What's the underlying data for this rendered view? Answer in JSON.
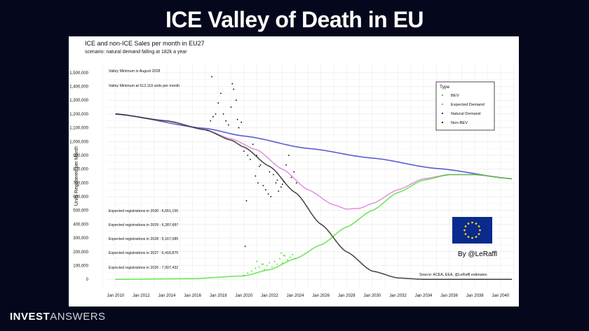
{
  "header": {
    "title": "ICE Valley of Death in EU"
  },
  "brand": {
    "part1": "INVEST",
    "part2": "ANSWERS"
  },
  "chart_data": {
    "type": "scatter",
    "title": "ICE and non-ICE Sales per month in EU27",
    "subtitle": "scenario: natural demand falling at 182k a year",
    "xlabel": "",
    "ylabel": "Units Registered per Month",
    "x_ticks": [
      "Jan 2010",
      "Jan 2012",
      "Jan 2014",
      "Jan 2016",
      "Jan 2018",
      "Jan 2020",
      "Jan 2022",
      "Jan 2024",
      "Jan 2026",
      "Jan 2028",
      "Jan 2030",
      "Jan 2032",
      "Jan 2034",
      "Jan 2036",
      "Jan 2038",
      "Jan 2040"
    ],
    "xlim": [
      2009.3,
      2041.1
    ],
    "ylim": [
      -60000,
      1560000
    ],
    "y_ticks": [
      "0",
      "100,000",
      "200,000",
      "300,000",
      "400,000",
      "500,000",
      "600,000",
      "700,000",
      "800,000",
      "900,000",
      "1,000,000",
      "1,100,000",
      "1,200,000",
      "1,300,000",
      "1,400,000",
      "1,500,000"
    ],
    "grid": true,
    "legend": {
      "title": "Type",
      "position": "top-right",
      "entries": [
        {
          "name": "BEV",
          "color": "#32dd14"
        },
        {
          "name": "Expected Demand",
          "color": "#d56bd3"
        },
        {
          "name": "Natural Demand",
          "color": "#1515c4"
        },
        {
          "name": "Non-BEV",
          "color": "#000000"
        }
      ]
    },
    "series": [
      {
        "name": "Natural Demand",
        "color": "#1515c4",
        "x": [
          2010,
          2017,
          2020,
          2025,
          2030,
          2035,
          2040.9
        ],
        "y": [
          1200000,
          1095000,
          1040000,
          950000,
          880000,
          805000,
          730000
        ]
      },
      {
        "name": "Expected Demand",
        "color": "#d56bd3",
        "x": [
          2010,
          2014,
          2017,
          2019,
          2021,
          2023,
          2025,
          2027,
          2028,
          2029,
          2030,
          2032,
          2034,
          2036,
          2038,
          2040.9
        ],
        "y": [
          1200000,
          1150000,
          1085000,
          1020000,
          940000,
          800000,
          650000,
          540000,
          510000,
          515000,
          550000,
          650000,
          730000,
          760000,
          760000,
          730000
        ]
      },
      {
        "name": "Non-BEV",
        "color": "#000000",
        "x": [
          2010,
          2014,
          2017,
          2019,
          2020,
          2022,
          2024,
          2026,
          2028,
          2030,
          2032,
          2034,
          2036,
          2040.9
        ],
        "y": [
          1200000,
          1150000,
          1085000,
          1010000,
          960000,
          820000,
          630000,
          400000,
          200000,
          60000,
          10000,
          0,
          0,
          0
        ]
      },
      {
        "name": "BEV",
        "color": "#32dd14",
        "x": [
          2010,
          2016,
          2020,
          2022,
          2024,
          2026,
          2028,
          2030,
          2032,
          2034,
          2036,
          2038,
          2040.9
        ],
        "y": [
          0,
          5000,
          25000,
          70000,
          150000,
          250000,
          380000,
          500000,
          630000,
          720000,
          760000,
          760000,
          730000
        ]
      }
    ],
    "observed_non_bev": {
      "x": [
        2017.2,
        2017.4,
        2017.6,
        2017.8,
        2018.0,
        2018.2,
        2018.4,
        2018.6,
        2018.8,
        2019.0,
        2019.2,
        2019.4,
        2019.6,
        2019.8,
        2020.0,
        2020.3,
        2020.5,
        2020.7,
        2020.9,
        2021.1,
        2021.3,
        2021.5,
        2021.7,
        2021.9,
        2022.1,
        2022.3,
        2022.5,
        2022.7,
        2022.9,
        2023.1,
        2023.3,
        2023.5,
        2023.7,
        2023.9,
        2024.1,
        2020.1,
        2020.2,
        2021.0,
        2022.0,
        2023.0,
        2017.5,
        2019.1,
        2019.5,
        2021.2,
        2022.6
      ],
      "y": [
        1080000,
        1150000,
        1180000,
        1200000,
        1280000,
        1350000,
        1200000,
        1150000,
        1120000,
        1250000,
        1380000,
        1300000,
        1100000,
        1140000,
        930000,
        900000,
        870000,
        980000,
        750000,
        700000,
        830000,
        680000,
        650000,
        620000,
        600000,
        760000,
        700000,
        640000,
        670000,
        710000,
        830000,
        900000,
        740000,
        780000,
        700000,
        240000,
        570000,
        900000,
        780000,
        690000,
        1470000,
        1420000,
        1160000,
        820000,
        720000
      ]
    },
    "observed_bev": {
      "x": [
        2020.0,
        2020.3,
        2020.6,
        2020.9,
        2021.2,
        2021.4,
        2021.6,
        2021.8,
        2022.0,
        2022.2,
        2022.4,
        2022.6,
        2022.8,
        2023.0,
        2023.2,
        2023.4,
        2023.6,
        2023.8,
        2024.0,
        2021.0,
        2021.5,
        2022.9,
        2023.1
      ],
      "y": [
        30000,
        45000,
        60000,
        80000,
        90000,
        110000,
        70000,
        100000,
        120000,
        90000,
        130000,
        110000,
        150000,
        120000,
        170000,
        140000,
        160000,
        180000,
        150000,
        130000,
        110000,
        190000,
        175000
      ]
    },
    "annotations": [
      "Valley Minimum in August 2028",
      "Valley Minimum at 512,119 units per month",
      "Expected registrations in 2030 : 6,651,155",
      "Expected registrations in 2029 : 6,287,687",
      "Expected registrations in 2028 : 6,167,085",
      "Expected registrations in 2027 : 6,418,875",
      "Expected registrations in 2026 : 7,007,432",
      "Source: ACEA, EEA, @LeRaffl estimates"
    ],
    "byline": "By @LeRaffl"
  }
}
